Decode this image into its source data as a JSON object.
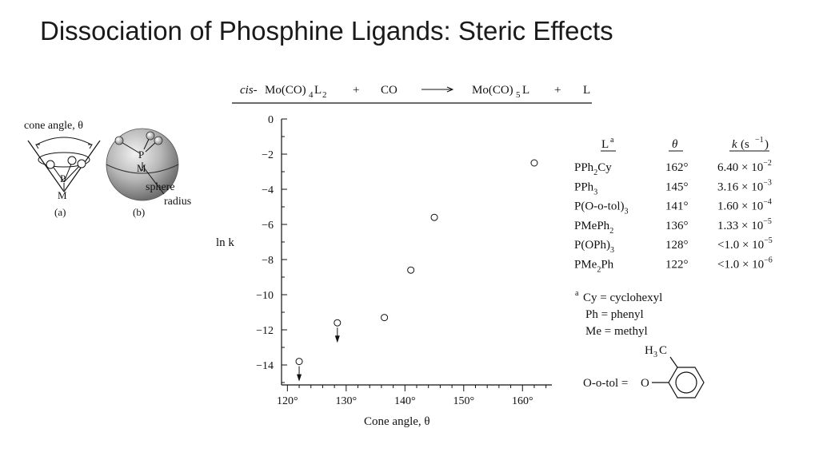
{
  "slide": {
    "title": "Dissociation of Phosphine Ligands: Steric Effects"
  },
  "reaction": {
    "prefix": "cis-",
    "reactant": "Mo(CO)",
    "reactant_sub1": "4",
    "reactant_l": "L",
    "reactant_sub2": "2",
    "plus1": "+",
    "co": "CO",
    "product": "Mo(CO)",
    "product_sub": "5",
    "product_l": "L",
    "plus2": "+",
    "l": "L"
  },
  "cone_figure": {
    "cone_angle_label": "cone angle, θ",
    "p_label": "P",
    "m_label": "M",
    "caption_a": "(a)",
    "caption_b": "(b)",
    "sphere_label": "sphere",
    "radius_label": "radius"
  },
  "chart_data": {
    "type": "scatter",
    "xlabel": "Cone angle, θ",
    "ylabel": "ln k",
    "xlim": [
      119,
      165
    ],
    "ylim": [
      -15,
      0
    ],
    "x_ticks": [
      120,
      130,
      140,
      150,
      160
    ],
    "x_tick_labels": [
      "120°",
      "130°",
      "140°",
      "150°",
      "160°"
    ],
    "y_ticks": [
      0,
      -2,
      -4,
      -6,
      -8,
      -10,
      -12,
      -14
    ],
    "y_tick_labels": [
      "0",
      "−2",
      "−4",
      "−6",
      "−8",
      "−10",
      "−12",
      "−14"
    ],
    "points": [
      {
        "x": 122,
        "y": -13.8,
        "upper_limit": true
      },
      {
        "x": 128.5,
        "y": -11.6,
        "upper_limit": true
      },
      {
        "x": 136.5,
        "y": -11.3,
        "upper_limit": false
      },
      {
        "x": 141,
        "y": -8.6,
        "upper_limit": false
      },
      {
        "x": 145,
        "y": -5.6,
        "upper_limit": false
      },
      {
        "x": 162,
        "y": -2.5,
        "upper_limit": false
      }
    ],
    "grid": false
  },
  "table": {
    "header": {
      "ligand": "L",
      "ligand_sup": "a",
      "theta": "θ",
      "k": "k",
      "k_unit": "(s",
      "k_unit_exp": "−1",
      "k_close": ")"
    },
    "rows": [
      {
        "ligand": "PPh",
        "ligand_sub": "2",
        "ligand_tail": "Cy",
        "ligand_sub2": "",
        "theta": "162°",
        "k_mant": "6.40 × 10",
        "k_exp": "−2"
      },
      {
        "ligand": "PPh",
        "ligand_sub": "3",
        "ligand_tail": "",
        "ligand_sub2": "",
        "theta": "145°",
        "k_mant": "3.16 × 10",
        "k_exp": "−3"
      },
      {
        "ligand": "P(O-o-tol)",
        "ligand_sub": "3",
        "ligand_tail": "",
        "ligand_sub2": "",
        "theta": "141°",
        "k_mant": "1.60 × 10",
        "k_exp": "−4"
      },
      {
        "ligand": "PMePh",
        "ligand_sub": "2",
        "ligand_tail": "",
        "ligand_sub2": "",
        "theta": "136°",
        "k_mant": "1.33 × 10",
        "k_exp": "−5"
      },
      {
        "ligand": "P(OPh)",
        "ligand_sub": "3",
        "ligand_tail": "",
        "ligand_sub2": "",
        "theta": "128°",
        "k_mant": "<1.0 × 10",
        "k_exp": "−5"
      },
      {
        "ligand": "PMe",
        "ligand_sub": "2",
        "ligand_tail": "Ph",
        "ligand_sub2": "",
        "theta": "122°",
        "k_mant": "<1.0 × 10",
        "k_exp": "−6"
      }
    ]
  },
  "footnotes": {
    "marker": "a",
    "cy": "Cy = cyclohexyl",
    "ph": "Ph = phenyl",
    "me": "Me = methyl",
    "structure_label": "O-o-tol =",
    "structure_o": "O",
    "methyl_h": "H",
    "methyl_sub": "3",
    "methyl_c": "C"
  }
}
